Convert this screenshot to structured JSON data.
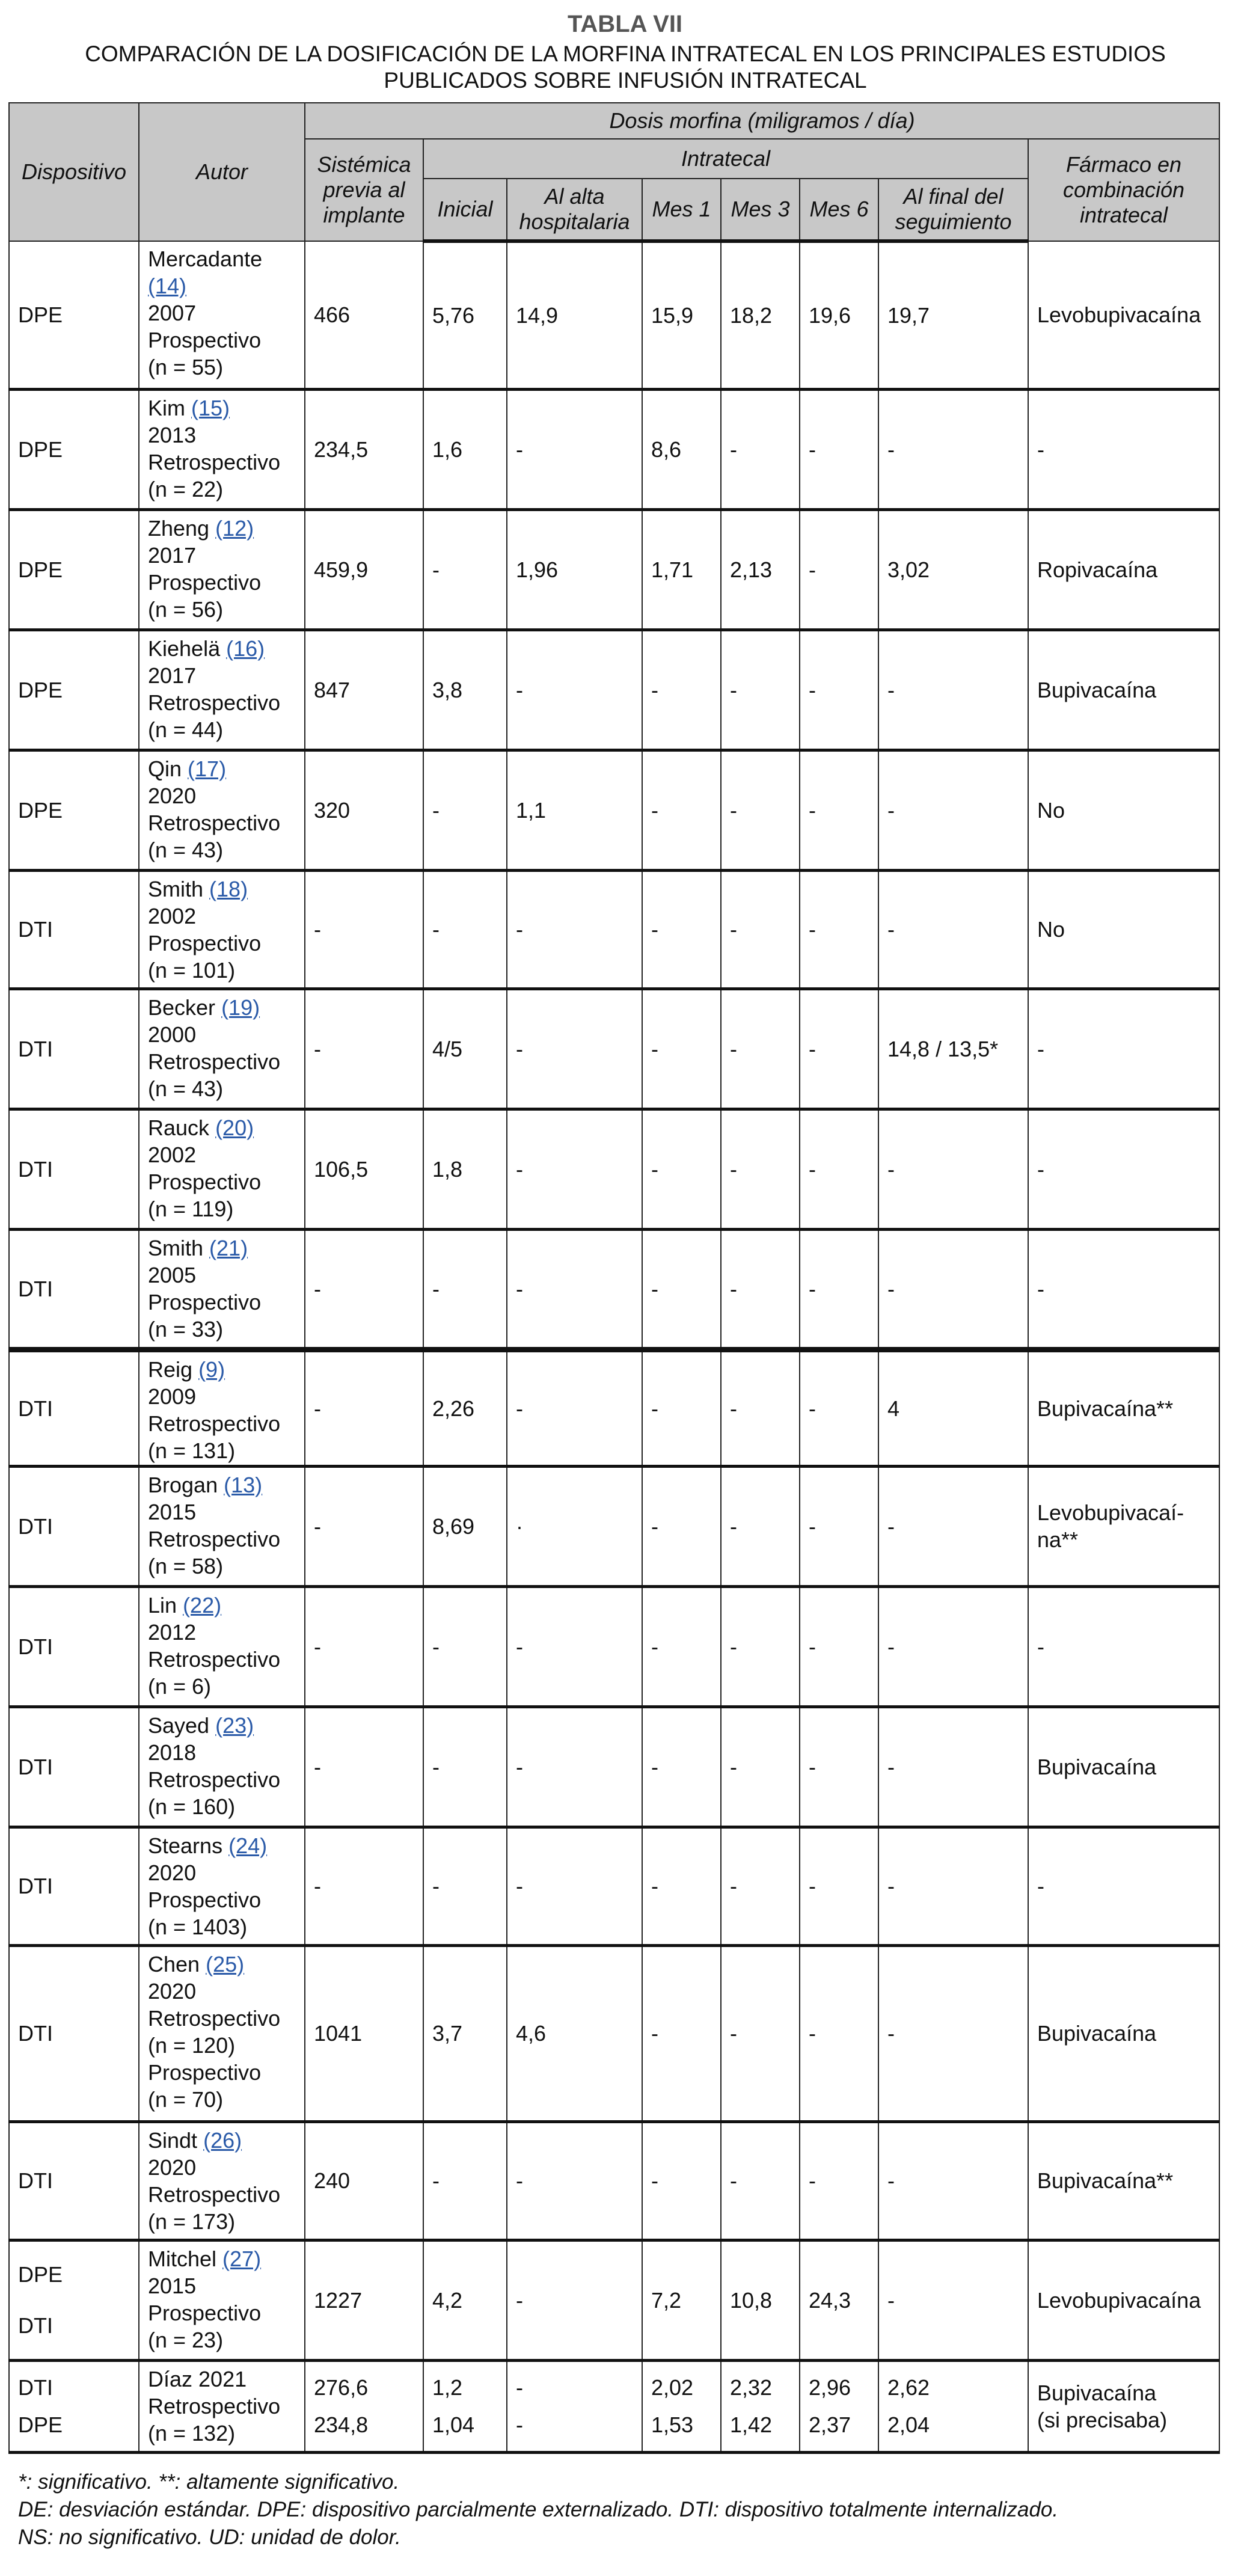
{
  "title": "TABLA VII",
  "subtitle": "COMPARACIÓN DE LA DOSIFICACIÓN DE LA MORFINA INTRATECAL EN LOS PRINCIPALES ESTUDIOS PUBLICADOS SOBRE INFUSIÓN INTRATECAL",
  "header": {
    "dispositivo": "Dispositivo",
    "autor": "Autor",
    "dosis": "Dosis morfina (miligramos / día)",
    "sistemica": "Sistémica previa al implante",
    "intratecal": "Intratecal",
    "farmaco": "Fármaco en combinación intratecal",
    "inicial": "Inicial",
    "alta": "Al alta hospitalaria",
    "mes1": "Mes 1",
    "mes3": "Mes 3",
    "mes6": "Mes 6",
    "final": "Al final del seguimiento"
  },
  "rows": [
    {
      "device": [
        "DPE"
      ],
      "author": {
        "name": "Mercadante",
        "ref": "(14)",
        "lines": [
          "2007",
          "Prospectivo",
          "(n = 55)"
        ]
      },
      "values": [
        [
          "466"
        ],
        [
          "5,76"
        ],
        [
          "14,9"
        ],
        [
          "15,9"
        ],
        [
          "18,2"
        ],
        [
          "19,6"
        ],
        [
          "19,7"
        ]
      ],
      "drug": "Levobupivacaína"
    },
    {
      "device": [
        "DPE"
      ],
      "author": {
        "name": "Kim",
        "ref": "(15)",
        "lines": [
          "2013",
          "Retrospectivo",
          "(n = 22)"
        ]
      },
      "values": [
        [
          "234,5"
        ],
        [
          "1,6"
        ],
        [
          "-"
        ],
        [
          "8,6"
        ],
        [
          "-"
        ],
        [
          "-"
        ],
        [
          "-"
        ]
      ],
      "drug": "-"
    },
    {
      "device": [
        "DPE"
      ],
      "author": {
        "name": "Zheng",
        "ref": "(12)",
        "lines": [
          "2017",
          "Prospectivo",
          "(n = 56)"
        ]
      },
      "values": [
        [
          "459,9"
        ],
        [
          "-"
        ],
        [
          "1,96"
        ],
        [
          "1,71"
        ],
        [
          "2,13"
        ],
        [
          "-"
        ],
        [
          "3,02"
        ]
      ],
      "drug": "Ropivacaína"
    },
    {
      "device": [
        "DPE"
      ],
      "author": {
        "name": "Kiehelä",
        "ref": "(16)",
        "lines": [
          "2017",
          "Retrospectivo",
          "(n = 44)"
        ]
      },
      "values": [
        [
          "847"
        ],
        [
          "3,8"
        ],
        [
          "-"
        ],
        [
          "-"
        ],
        [
          "-"
        ],
        [
          "-"
        ],
        [
          "-"
        ]
      ],
      "drug": "Bupivacaína"
    },
    {
      "device": [
        "DPE"
      ],
      "author": {
        "name": "Qin",
        "ref": "(17)",
        "lines": [
          "2020",
          "Retrospectivo",
          "(n = 43)"
        ]
      },
      "values": [
        [
          "320"
        ],
        [
          "-"
        ],
        [
          "1,1"
        ],
        [
          "-"
        ],
        [
          "-"
        ],
        [
          "-"
        ],
        [
          "-"
        ]
      ],
      "drug": "No"
    },
    {
      "device": [
        "DTI"
      ],
      "author": {
        "name": "Smith",
        "ref": "(18)",
        "lines": [
          "2002",
          "Prospectivo",
          "(n = 101)"
        ]
      },
      "values": [
        [
          "-"
        ],
        [
          "-"
        ],
        [
          "-"
        ],
        [
          "-"
        ],
        [
          "-"
        ],
        [
          "-"
        ],
        [
          "-"
        ]
      ],
      "drug": "No"
    },
    {
      "device": [
        "DTI"
      ],
      "author": {
        "name": "Becker",
        "ref": "(19)",
        "lines": [
          "2000",
          "Retrospectivo",
          "(n = 43)"
        ]
      },
      "values": [
        [
          "-"
        ],
        [
          "4/5"
        ],
        [
          "-"
        ],
        [
          "-"
        ],
        [
          "-"
        ],
        [
          "-"
        ],
        [
          "14,8 / 13,5*"
        ]
      ],
      "drug": "-"
    },
    {
      "device": [
        "DTI"
      ],
      "author": {
        "name": "Rauck",
        "ref": "(20)",
        "lines": [
          "2002",
          "Prospectivo",
          "(n = 119)"
        ]
      },
      "values": [
        [
          "106,5"
        ],
        [
          "1,8"
        ],
        [
          "-"
        ],
        [
          "-"
        ],
        [
          "-"
        ],
        [
          "-"
        ],
        [
          "-"
        ]
      ],
      "drug": "-"
    },
    {
      "device": [
        "DTI"
      ],
      "author": {
        "name": "Smith",
        "ref": "(21)",
        "lines": [
          "2005",
          "Prospectivo",
          "(n = 33)"
        ]
      },
      "values": [
        [
          "-"
        ],
        [
          "-"
        ],
        [
          "-"
        ],
        [
          "-"
        ],
        [
          "-"
        ],
        [
          "-"
        ],
        [
          "-"
        ]
      ],
      "drug": "-"
    },
    {
      "device": [
        "DTI"
      ],
      "author": {
        "name": "Reig",
        "ref": "(9)",
        "lines": [
          "2009",
          "Retrospectivo",
          "(n = 131)"
        ]
      },
      "values": [
        [
          "-"
        ],
        [
          "2,26"
        ],
        [
          "-"
        ],
        [
          "-"
        ],
        [
          "-"
        ],
        [
          "-"
        ],
        [
          "4"
        ]
      ],
      "drug": "Bupivacaína**"
    },
    {
      "device": [
        "DTI"
      ],
      "author": {
        "name": "Brogan",
        "ref": "(13)",
        "lines": [
          "2015",
          "Retrospectivo",
          "(n = 58)"
        ]
      },
      "values": [
        [
          "-"
        ],
        [
          "8,69"
        ],
        [
          "·"
        ],
        [
          "-"
        ],
        [
          "-"
        ],
        [
          "-"
        ],
        [
          "-"
        ]
      ],
      "drug": "Levobupivacaí-\nna**"
    },
    {
      "device": [
        "DTI"
      ],
      "author": {
        "name": "Lin",
        "ref": "(22)",
        "lines": [
          "2012",
          "Retrospectivo",
          "(n = 6)"
        ]
      },
      "values": [
        [
          "-"
        ],
        [
          "-"
        ],
        [
          "-"
        ],
        [
          "-"
        ],
        [
          "-"
        ],
        [
          "-"
        ],
        [
          "-"
        ]
      ],
      "drug": "-"
    },
    {
      "device": [
        "DTI"
      ],
      "author": {
        "name": "Sayed",
        "ref": "(23)",
        "lines": [
          "2018",
          "Retrospectivo",
          "(n = 160)"
        ]
      },
      "values": [
        [
          "-"
        ],
        [
          "-"
        ],
        [
          "-"
        ],
        [
          "-"
        ],
        [
          "-"
        ],
        [
          "-"
        ],
        [
          "-"
        ]
      ],
      "drug": "Bupivacaína"
    },
    {
      "device": [
        "DTI"
      ],
      "author": {
        "name": "Stearns",
        "ref": "(24)",
        "lines": [
          "2020",
          "Prospectivo",
          "(n = 1403)"
        ]
      },
      "values": [
        [
          "-"
        ],
        [
          "-"
        ],
        [
          "-"
        ],
        [
          "-"
        ],
        [
          "-"
        ],
        [
          "-"
        ],
        [
          "-"
        ]
      ],
      "drug": "-"
    },
    {
      "device": [
        "DTI"
      ],
      "author": {
        "name": "Chen",
        "ref": "(25)",
        "lines": [
          "2020",
          "Retrospectivo",
          "(n = 120)",
          "Prospectivo",
          "(n = 70)"
        ]
      },
      "values": [
        [
          "1041"
        ],
        [
          "3,7"
        ],
        [
          "4,6"
        ],
        [
          "-"
        ],
        [
          "-"
        ],
        [
          "-"
        ],
        [
          "-"
        ]
      ],
      "drug": "Bupivacaína"
    },
    {
      "device": [
        "DTI"
      ],
      "author": {
        "name": "Sindt",
        "ref": "(26)",
        "lines": [
          "2020",
          "Retrospectivo",
          "(n = 173)"
        ]
      },
      "values": [
        [
          "240"
        ],
        [
          "-"
        ],
        [
          "-"
        ],
        [
          "-"
        ],
        [
          "-"
        ],
        [
          "-"
        ],
        [
          "-"
        ]
      ],
      "drug": "Bupivacaína**"
    },
    {
      "device": [
        "DPE",
        "DTI"
      ],
      "author": {
        "name": "Mitchel",
        "ref": "(27)",
        "lines": [
          "2015",
          "Prospectivo",
          "(n = 23)"
        ]
      },
      "values": [
        [
          "1227"
        ],
        [
          "4,2"
        ],
        [
          "-"
        ],
        [
          "7,2"
        ],
        [
          "10,8"
        ],
        [
          "24,3"
        ],
        [
          "-"
        ]
      ],
      "drug": "Levobupivacaína"
    },
    {
      "device": [
        "DTI",
        "DPE"
      ],
      "author": {
        "name": "Díaz 2021",
        "ref": "",
        "lines": [
          "Retrospectivo",
          "(n = 132)"
        ]
      },
      "values": [
        [
          "276,6",
          "234,8"
        ],
        [
          "1,2",
          "1,04"
        ],
        [
          "-",
          "-"
        ],
        [
          "2,02",
          "1,53"
        ],
        [
          "2,32",
          "1,42"
        ],
        [
          "2,96",
          "2,37"
        ],
        [
          "2,62",
          "2,04"
        ]
      ],
      "drug": "Bupivacaína\n(si precisaba)"
    }
  ],
  "notes": [
    "*: significativo. **: altamente significativo.",
    "DE: desviación estándar. DPE: dispositivo parcialmente externalizado. DTI: dispositivo totalmente internalizado.",
    "NS: no significativo. UD: unidad de dolor."
  ]
}
